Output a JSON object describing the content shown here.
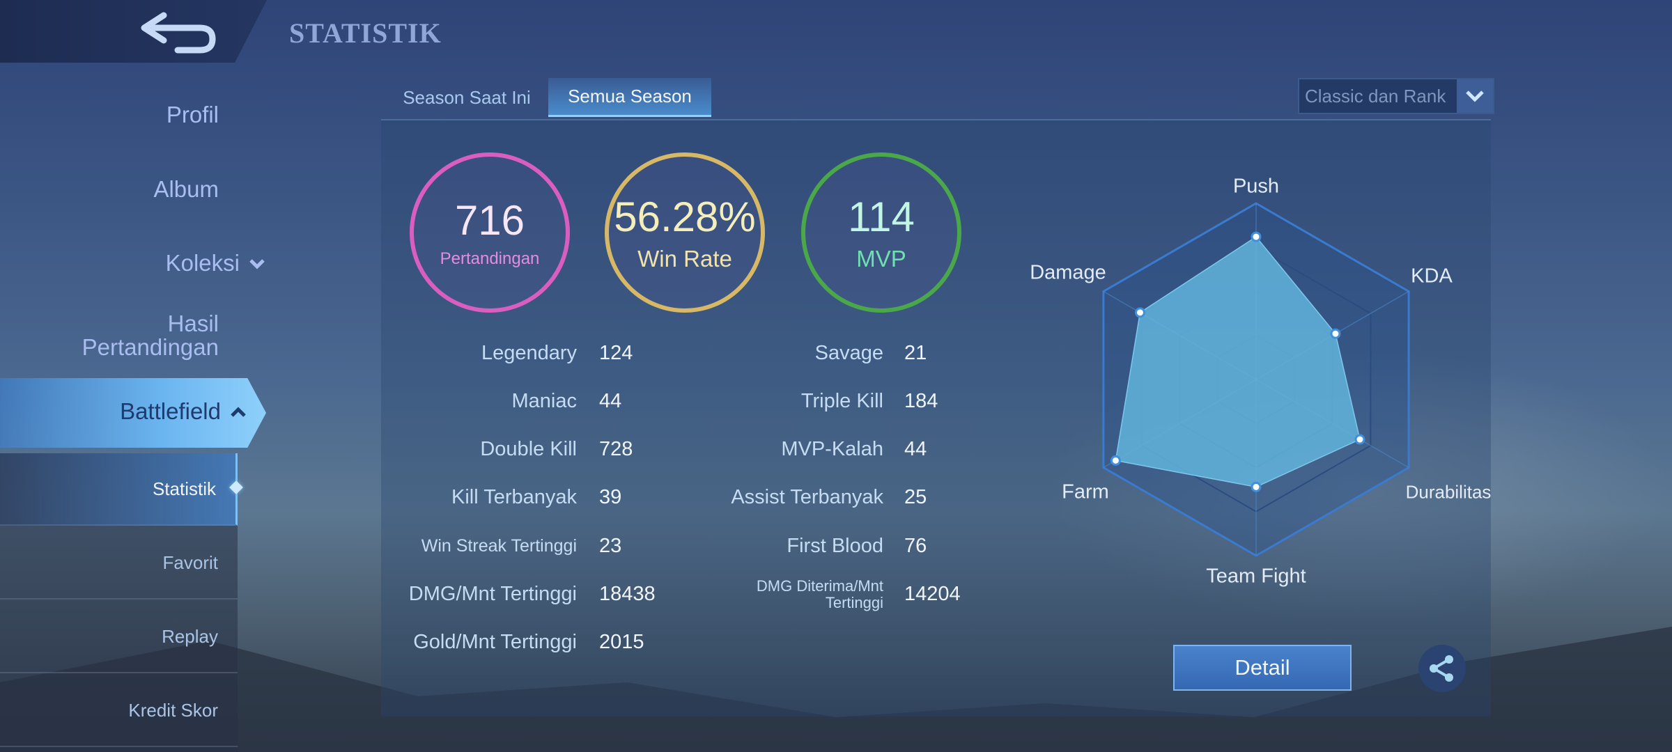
{
  "header": {
    "title": "STATISTIK",
    "back_icon": "back-arrow-icon"
  },
  "sidebar": {
    "items": [
      {
        "label": "Profil"
      },
      {
        "label": "Album"
      },
      {
        "label": "Koleksi",
        "icon": "chevron-down-icon"
      },
      {
        "label": "Hasil Pertandingan"
      },
      {
        "label": "Battlefield",
        "icon": "chevron-up-icon",
        "active": true
      }
    ],
    "subitems": [
      {
        "label": "Statistik",
        "active": true
      },
      {
        "label": "Favorit"
      },
      {
        "label": "Replay"
      },
      {
        "label": "Kredit Skor"
      }
    ]
  },
  "tabs": [
    {
      "label": "Season Saat Ini"
    },
    {
      "label": "Semua Season",
      "active": true
    }
  ],
  "mode_dropdown": {
    "selected": "Classic dan Rank"
  },
  "summary": [
    {
      "value": "716",
      "label": "Pertandingan",
      "color": "#d95ec0",
      "text_color": "#f7e6f6",
      "label_color": "#e48ce0"
    },
    {
      "value": "56.28%",
      "label": "Win Rate",
      "color": "#d6b866",
      "text_color": "#f4eebc",
      "label_color": "#efe3b0"
    },
    {
      "value": "114",
      "label": "MVP",
      "color": "#4aa84a",
      "text_color": "#c2f5e3",
      "label_color": "#6fe0b0"
    }
  ],
  "stats_left": [
    {
      "label": "Legendary",
      "value": "124"
    },
    {
      "label": "Maniac",
      "value": "44"
    },
    {
      "label": "Double Kill",
      "value": "728"
    },
    {
      "label": "Kill Terbanyak",
      "value": "39"
    },
    {
      "label": "Win Streak Tertinggi",
      "value": "23"
    },
    {
      "label": "DMG/Mnt Tertinggi",
      "value": "18438"
    },
    {
      "label": "Gold/Mnt Tertinggi",
      "value": "2015"
    }
  ],
  "stats_right": [
    {
      "label": "Savage",
      "value": "21"
    },
    {
      "label": "Triple Kill",
      "value": "184"
    },
    {
      "label": "MVP-Kalah",
      "value": "44"
    },
    {
      "label": "Assist Terbanyak",
      "value": "25"
    },
    {
      "label": "First Blood",
      "value": "76"
    },
    {
      "label": "DMG Diterima/Mnt Tertinggi",
      "value": "14204"
    }
  ],
  "chart_data": {
    "type": "radar",
    "axes": [
      "Push",
      "KDA",
      "Durabilitas",
      "Team Fight",
      "Farm",
      "Damage"
    ],
    "values": [
      0.81,
      0.52,
      0.68,
      0.61,
      0.92,
      0.76
    ],
    "range": [
      0,
      1
    ],
    "grid_levels": [
      0.25,
      0.5,
      0.75,
      1
    ],
    "fill_color": "#62b4dc"
  },
  "buttons": {
    "detail": "Detail",
    "share_icon": "share-icon"
  }
}
